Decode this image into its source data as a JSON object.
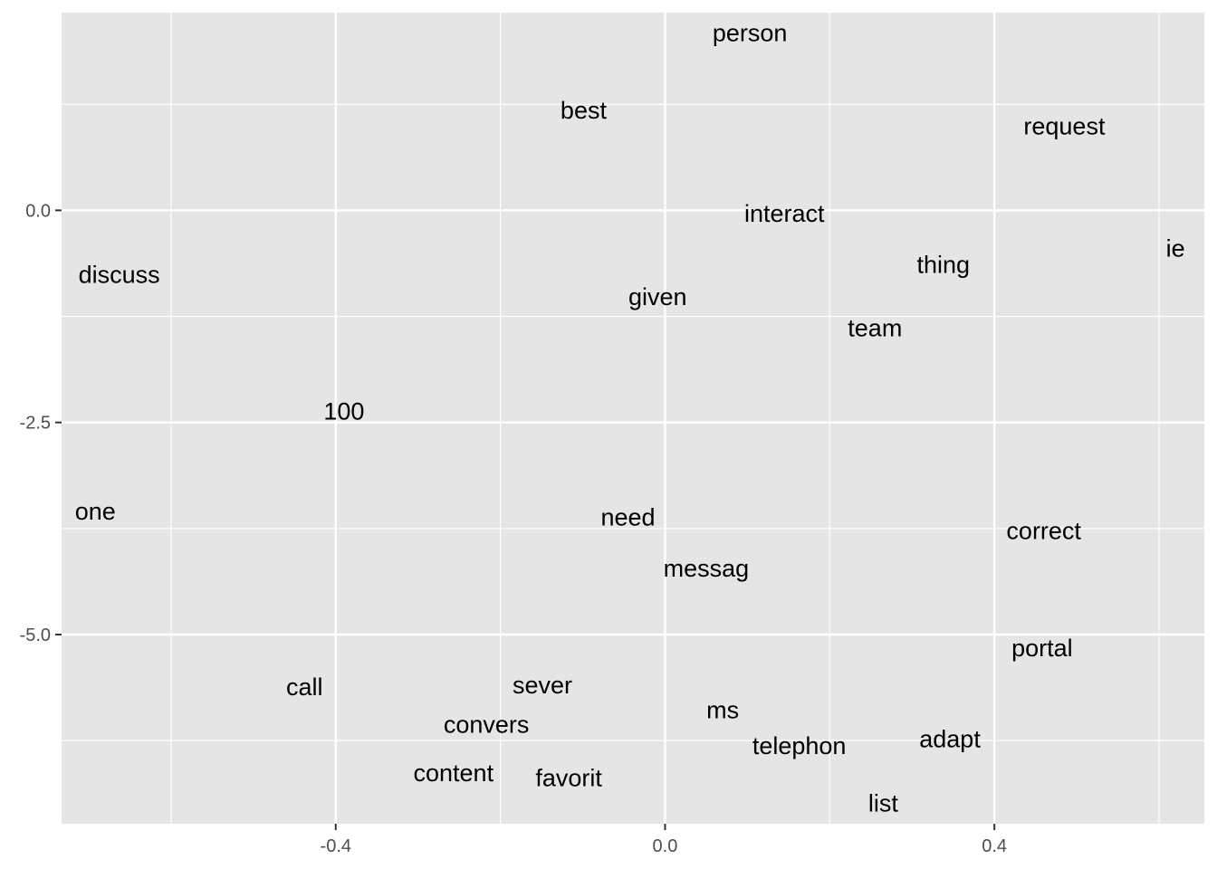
{
  "chart_data": {
    "type": "scatter",
    "title": "",
    "xlabel": "",
    "ylabel": "",
    "xlim": [
      -0.733,
      0.655
    ],
    "ylim": [
      -7.23,
      2.33
    ],
    "x_ticks": [
      -0.4,
      0.0,
      0.4
    ],
    "x_tick_labels": [
      "-0.4",
      "0.0",
      "0.4"
    ],
    "y_ticks": [
      0.0,
      -2.5,
      -5.0
    ],
    "y_tick_labels": [
      "0.0",
      "-2.5",
      "-5.0"
    ],
    "x_minor_ticks": [
      -0.6,
      -0.2,
      0.2,
      0.6
    ],
    "y_minor_ticks": [
      1.25,
      -1.25,
      -3.75,
      -6.25
    ],
    "grid": true,
    "legend": "none",
    "colors": {
      "panel": "#e5e5e5",
      "grid": "#ffffff",
      "text": "#000000",
      "tick_text": "#4d4d4d",
      "tick_mark": "#333333"
    },
    "points": [
      {
        "label": "person",
        "x": 0.103,
        "y": 2.09
      },
      {
        "label": "best",
        "x": -0.099,
        "y": 1.18
      },
      {
        "label": "request",
        "x": 0.485,
        "y": 0.99
      },
      {
        "label": "interact",
        "x": 0.145,
        "y": -0.04
      },
      {
        "label": "ie",
        "x": 0.62,
        "y": -0.45
      },
      {
        "label": "thing",
        "x": 0.338,
        "y": -0.64
      },
      {
        "label": "discuss",
        "x": -0.663,
        "y": -0.76
      },
      {
        "label": "given",
        "x": -0.009,
        "y": -1.02
      },
      {
        "label": "team",
        "x": 0.255,
        "y": -1.39
      },
      {
        "label": "100",
        "x": -0.39,
        "y": -2.37
      },
      {
        "label": "one",
        "x": -0.692,
        "y": -3.55
      },
      {
        "label": "need",
        "x": -0.045,
        "y": -3.62
      },
      {
        "label": "correct",
        "x": 0.46,
        "y": -3.78
      },
      {
        "label": "messag",
        "x": 0.05,
        "y": -4.22
      },
      {
        "label": "portal",
        "x": 0.458,
        "y": -5.16
      },
      {
        "label": "call",
        "x": -0.438,
        "y": -5.62
      },
      {
        "label": "sever",
        "x": -0.149,
        "y": -5.6
      },
      {
        "label": "ms",
        "x": 0.07,
        "y": -5.89
      },
      {
        "label": "convers",
        "x": -0.217,
        "y": -6.06
      },
      {
        "label": "adapt",
        "x": 0.346,
        "y": -6.23
      },
      {
        "label": "telephon",
        "x": 0.163,
        "y": -6.31
      },
      {
        "label": "content",
        "x": -0.257,
        "y": -6.63
      },
      {
        "label": "favorit",
        "x": -0.117,
        "y": -6.69
      },
      {
        "label": "list",
        "x": 0.265,
        "y": -6.99
      }
    ]
  }
}
